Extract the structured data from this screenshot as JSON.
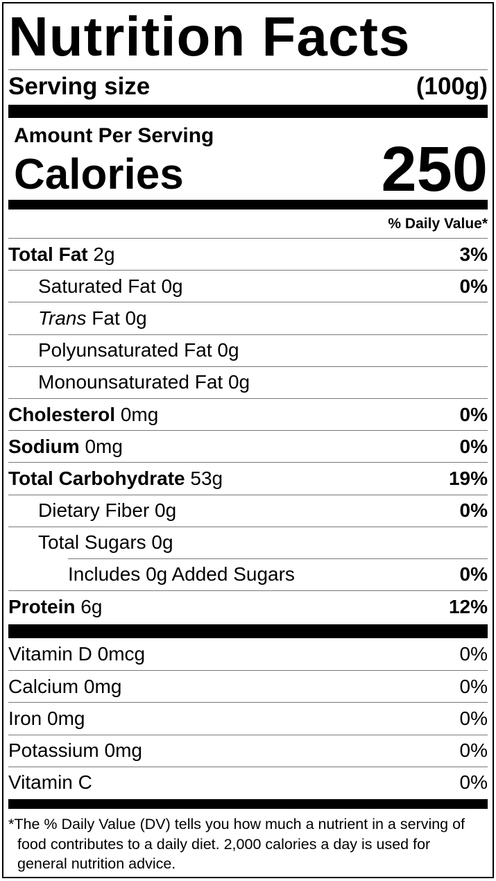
{
  "header": {
    "title": "Nutrition Facts",
    "serving_label": "Serving size",
    "serving_value": "(100g)",
    "amount_per_serving": "Amount Per Serving",
    "calories_label": "Calories",
    "calories_value": "250",
    "daily_value_heading": "% Daily Value*"
  },
  "nutrients": [
    {
      "name": "Total Fat",
      "amount": "2g",
      "dv": "3%",
      "sub": [
        {
          "name": "Saturated Fat",
          "amount": "0g",
          "dv": "0%"
        },
        {
          "prefix": "Trans",
          "name": "Fat",
          "amount": "0g"
        },
        {
          "name": "Polyunsaturated Fat",
          "amount": "0g"
        },
        {
          "name": "Monounsaturated Fat",
          "amount": "0g"
        }
      ]
    },
    {
      "name": "Cholesterol",
      "amount": "0mg",
      "dv": "0%"
    },
    {
      "name": "Sodium",
      "amount": "0mg",
      "dv": "0%"
    },
    {
      "name": "Total Carbohydrate",
      "amount": "53g",
      "dv": "19%",
      "sub": [
        {
          "name": "Dietary Fiber",
          "amount": "0g",
          "dv": "0%"
        },
        {
          "name": "Total Sugars",
          "amount": "0g",
          "sub": [
            {
              "text": "Includes 0g Added Sugars",
              "dv": "0%"
            }
          ]
        }
      ]
    },
    {
      "name": "Protein",
      "amount": "6g",
      "dv": "12%"
    }
  ],
  "vitamins": [
    {
      "name": "Vitamin D",
      "amount": "0mcg",
      "dv": "0%"
    },
    {
      "name": "Calcium",
      "amount": "0mg",
      "dv": "0%"
    },
    {
      "name": "Iron",
      "amount": "0mg",
      "dv": "0%"
    },
    {
      "name": "Potassium",
      "amount": "0mg",
      "dv": "0%"
    },
    {
      "name": "Vitamin C",
      "dv": "0%"
    }
  ],
  "footnote": "*The % Daily Value (DV) tells you how much a nutrient in a serving of food contributes to a daily diet. 2,000 calories a day is used for general nutrition advice."
}
